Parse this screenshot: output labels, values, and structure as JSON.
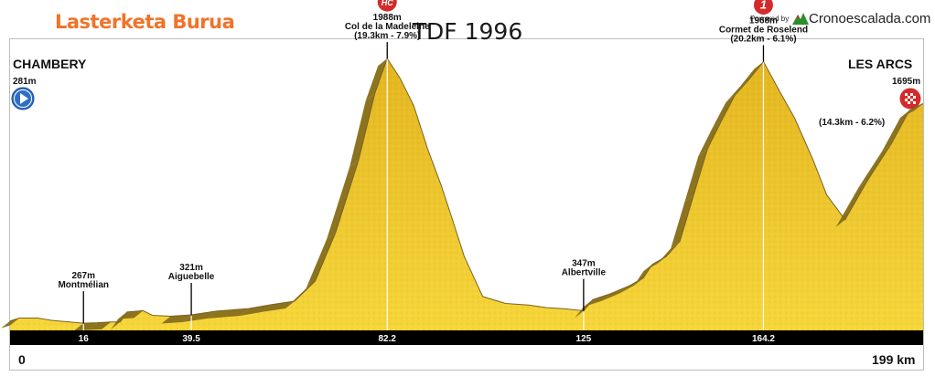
{
  "header": {
    "brand": "Lasterketa Burua",
    "title": "TDF 1996",
    "powered_by": "Powered by",
    "site": "Cronoescalada.com"
  },
  "start": {
    "name": "CHAMBERY",
    "altitude": "281m"
  },
  "finish": {
    "name": "LES ARCS",
    "altitude": "1695m",
    "climb_info": "(14.3km - 6.2%)",
    "climb_badge": "1"
  },
  "axis": {
    "start_label": "0",
    "end_label": "199 km"
  },
  "colors": {
    "fill_light": "#f6d63a",
    "fill_dark": "#e3b520",
    "shade": "#8c7320",
    "axis_band": "#000000",
    "brand": "#f0732a",
    "badge_red": "#d42a2a",
    "badge_blue": "#2e6fc4"
  },
  "chart_data": {
    "type": "area",
    "title": "TDF 1996",
    "xlabel": "",
    "ylabel": "",
    "x_unit": "km",
    "y_unit": "m",
    "xlim": [
      0,
      199
    ],
    "ylim": [
      220,
      2060
    ],
    "grid": false,
    "profile": [
      [
        0,
        281
      ],
      [
        2,
        300
      ],
      [
        6,
        300
      ],
      [
        9,
        285
      ],
      [
        14,
        272
      ],
      [
        16,
        267
      ],
      [
        19,
        270
      ],
      [
        22,
        275
      ],
      [
        24,
        275
      ],
      [
        25.5,
        340
      ],
      [
        29,
        348
      ],
      [
        31,
        318
      ],
      [
        35,
        312
      ],
      [
        39.5,
        321
      ],
      [
        45,
        345
      ],
      [
        52,
        362
      ],
      [
        57,
        388
      ],
      [
        62,
        410
      ],
      [
        66.5,
        540
      ],
      [
        71,
        860
      ],
      [
        76,
        1330
      ],
      [
        79.5,
        1760
      ],
      [
        82.2,
        1988
      ],
      [
        85,
        1860
      ],
      [
        88,
        1680
      ],
      [
        91,
        1400
      ],
      [
        94,
        1160
      ],
      [
        96,
        980
      ],
      [
        99,
        700
      ],
      [
        103,
        440
      ],
      [
        108,
        395
      ],
      [
        113,
        385
      ],
      [
        117,
        368
      ],
      [
        121,
        360
      ],
      [
        125,
        347
      ],
      [
        127,
        420
      ],
      [
        131,
        460
      ],
      [
        135,
        510
      ],
      [
        138,
        560
      ],
      [
        140,
        650
      ],
      [
        143,
        700
      ],
      [
        146,
        800
      ],
      [
        149,
        1100
      ],
      [
        152,
        1400
      ],
      [
        155,
        1580
      ],
      [
        158,
        1750
      ],
      [
        161,
        1850
      ],
      [
        164.2,
        1968
      ],
      [
        168,
        1760
      ],
      [
        171,
        1600
      ],
      [
        175,
        1330
      ],
      [
        178,
        1100
      ],
      [
        182,
        940
      ],
      [
        187,
        1200
      ],
      [
        192,
        1430
      ],
      [
        196,
        1650
      ],
      [
        199,
        1695
      ]
    ],
    "annotations": [
      {
        "km": 16,
        "name": "Montmélian",
        "altitude": 267,
        "alt_label": "267m",
        "km_label": "16",
        "climb": "",
        "badge": ""
      },
      {
        "km": 39.5,
        "name": "Aiguebelle",
        "altitude": 321,
        "alt_label": "321m",
        "km_label": "39.5",
        "climb": "",
        "badge": ""
      },
      {
        "km": 82.2,
        "name": "Col de la Madeleine",
        "altitude": 1988,
        "alt_label": "1988m",
        "km_label": "82.2",
        "climb": "(19.3km - 7.9%)",
        "badge": "HC"
      },
      {
        "km": 125,
        "name": "Albertville",
        "altitude": 347,
        "alt_label": "347m",
        "km_label": "125",
        "climb": "",
        "badge": ""
      },
      {
        "km": 164.2,
        "name": "Cormet de Roselend",
        "altitude": 1968,
        "alt_label": "1968m",
        "km_label": "164.2",
        "climb": "(20.2km - 6.1%)",
        "badge": "1"
      }
    ]
  }
}
